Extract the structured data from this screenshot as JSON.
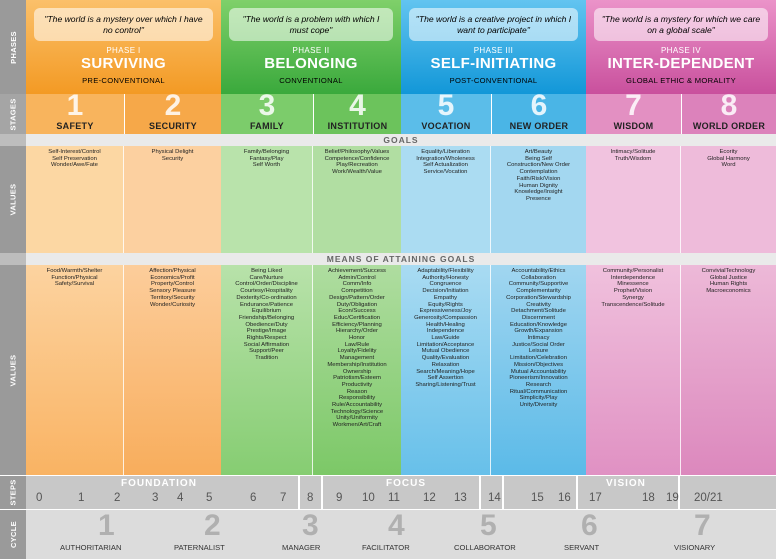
{
  "side_labels": {
    "phases": "PHASES",
    "stages": "STAGES",
    "values_goals": "VALUES",
    "values_means": "VALUES",
    "steps": "STEPS",
    "cycle": "CYCLE"
  },
  "phases": [
    {
      "quote": "\"The world is a mystery over which I have no control\"",
      "label": "PHASE I",
      "name": "SURVIVING",
      "sub": "PRE-CONVENTIONAL",
      "color": "#f7a23b"
    },
    {
      "quote": "\"The world is a problem with which I must cope\"",
      "label": "PHASE II",
      "name": "BELONGING",
      "sub": "CONVENTIONAL",
      "color": "#4cb848"
    },
    {
      "quote": "\"The world is a creative project in which I want to participate\"",
      "label": "PHASE III",
      "name": "SELF-INITIATING",
      "sub": "POST-CONVENTIONAL",
      "color": "#1da3e0"
    },
    {
      "quote": "\"The world is a mystery for which we care on a global scale\"",
      "label": "PHASE IV",
      "name": "INTER-DEPENDENT",
      "sub": "GLOBAL ETHIC & MORALITY",
      "color": "#cf5ca6"
    }
  ],
  "stages": [
    {
      "num": "1",
      "name": "SAFETY"
    },
    {
      "num": "2",
      "name": "SECURITY"
    },
    {
      "num": "3",
      "name": "FAMILY"
    },
    {
      "num": "4",
      "name": "INSTITUTION"
    },
    {
      "num": "5",
      "name": "VOCATION"
    },
    {
      "num": "6",
      "name": "NEW ORDER"
    },
    {
      "num": "7",
      "name": "WISDOM"
    },
    {
      "num": "8",
      "name": "WORLD ORDER"
    }
  ],
  "goals_title": "GOALS",
  "goals": [
    [
      "Self-Interest/Control",
      "Self Preservation",
      "Wonder/Awe/Fate"
    ],
    [
      "Physical Delight",
      "Security"
    ],
    [
      "Family/Belonging",
      "Fantasy/Play",
      "Self Worth"
    ],
    [
      "Belief/Philosophy/Values",
      "Competence/Confidence",
      "Play/Recreation",
      "Work/Wealth/Value"
    ],
    [
      "Equality/Liberation",
      "Integration/Wholeness",
      "Self Actualization",
      "Service/Vocation"
    ],
    [
      "Art/Beauty",
      "Being Self",
      "Construction/New Order",
      "Contemplation",
      "Faith/Risk/Vision",
      "Human Dignity",
      "Knowledge/Insight",
      "Presence"
    ],
    [
      "Intimacy/Solitude",
      "Truth/Wisdom"
    ],
    [
      "Ecority",
      "Global Harmony",
      "Word"
    ]
  ],
  "means_title": "MEANS OF ATTAINING GOALS",
  "means": [
    [
      "Food/Warmth/Shelter",
      "Function/Physical",
      "Safety/Survival"
    ],
    [
      "Affection/Physical",
      "Economics/Profit",
      "Property/Control",
      "Sensory Pleasure",
      "Territory/Security",
      "Wonder/Curiosity"
    ],
    [
      "Being Liked",
      "Care/Nurture",
      "Control/Order/Discipline",
      "Courtesy/Hospitality",
      "Dexterity/Co-ordination",
      "Endurance/Patience",
      "Equilibrium",
      "Friendship/Belonging",
      "Obedience/Duty",
      "Prestige/Image",
      "Rights/Respect",
      "Social Affirmation",
      "Support/Peer",
      "Tradition"
    ],
    [
      "Achievement/Success",
      "Admin/Control",
      "Comm/Info",
      "Competition",
      "Design/Pattern/Order",
      "Duty/Obligation",
      "Econ/Success",
      "Educ/Certification",
      "Efficiency/Planning",
      "Hierarchy/Order",
      "Honor",
      "Law/Rule",
      "Loyalty/Fidelity",
      "Management",
      "Membership/Institution",
      "Ownership",
      "Patriotism/Esteem",
      "Productivity",
      "Reason",
      "Responsibility",
      "Rule/Accountability",
      "Technology/Science",
      "Unity/Uniformity",
      "Workmen/Art/Craft"
    ],
    [
      "Adaptability/Flexibility",
      "Authority/Honesty",
      "Congruence",
      "Decision/Initiation",
      "Empathy",
      "Equity/Rights",
      "Expressiveness/Joy",
      "Generosity/Compassion",
      "Health/Healing",
      "Independence",
      "Law/Guide",
      "Limitation/Acceptance",
      "Mutual Obedience",
      "Quality/Evaluation",
      "Relaxation",
      "Search/Meaning/Hope",
      "Self Assertion",
      "Sharing/Listening/Trust"
    ],
    [
      "Accountability/Ethics",
      "Collaboration",
      "Community/Supportive",
      "Complementarity",
      "Corporation/Stewardship",
      "Creativity",
      "Detachment/Solitude",
      "Discernment",
      "Education/Knowledge",
      "Growth/Expansion",
      "Intimacy",
      "Justice/Social Order",
      "Leisure",
      "Limitation/Celebration",
      "Mission/Objectives",
      "Mutual Accountability",
      "Pioneerism/Innovation",
      "Research",
      "Ritual/Communication",
      "Simplicity/Play",
      "Unity/Diversity"
    ],
    [
      "Community/Personalist",
      "Interdependence",
      "Minessence",
      "Prophet/Vision",
      "Synergy",
      "Transcendence/Solitude"
    ],
    [
      "ConvivialTechnology",
      "Global Justice",
      "Human Rights",
      "Macroeconomics"
    ]
  ],
  "steps": {
    "groups": [
      "FOUNDATION",
      "FOCUS",
      "VISION"
    ],
    "numbers": [
      "0",
      "1",
      "2",
      "3",
      "4",
      "5",
      "6",
      "7",
      "8",
      "9",
      "10",
      "11",
      "12",
      "13",
      "14",
      "15",
      "16",
      "17",
      "18",
      "19",
      "20/21"
    ]
  },
  "cycle": [
    {
      "num": "1",
      "name": "AUTHORITARIAN"
    },
    {
      "num": "2",
      "name": "PATERNALIST"
    },
    {
      "num": "3",
      "name": "MANAGER"
    },
    {
      "num": "4",
      "name": "FACILITATOR"
    },
    {
      "num": "5",
      "name": "COLLABORATOR"
    },
    {
      "num": "6",
      "name": "SERVANT"
    },
    {
      "num": "7",
      "name": "VISIONARY"
    }
  ]
}
